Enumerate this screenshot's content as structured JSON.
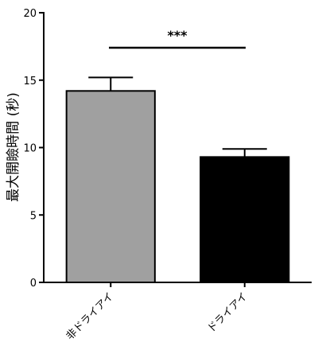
{
  "chart_data": {
    "type": "bar",
    "ylabel": "最大開瞼時間 (秒)",
    "categories": [
      "非ドライアイ",
      "ドライアイ"
    ],
    "values": [
      14.2,
      9.3
    ],
    "errors": [
      1.0,
      0.6
    ],
    "colors": [
      "#a0a0a0",
      "#000000"
    ],
    "ylim": [
      0,
      20
    ],
    "yticks": [
      0,
      5,
      10,
      15,
      20
    ],
    "annotation": "***"
  }
}
